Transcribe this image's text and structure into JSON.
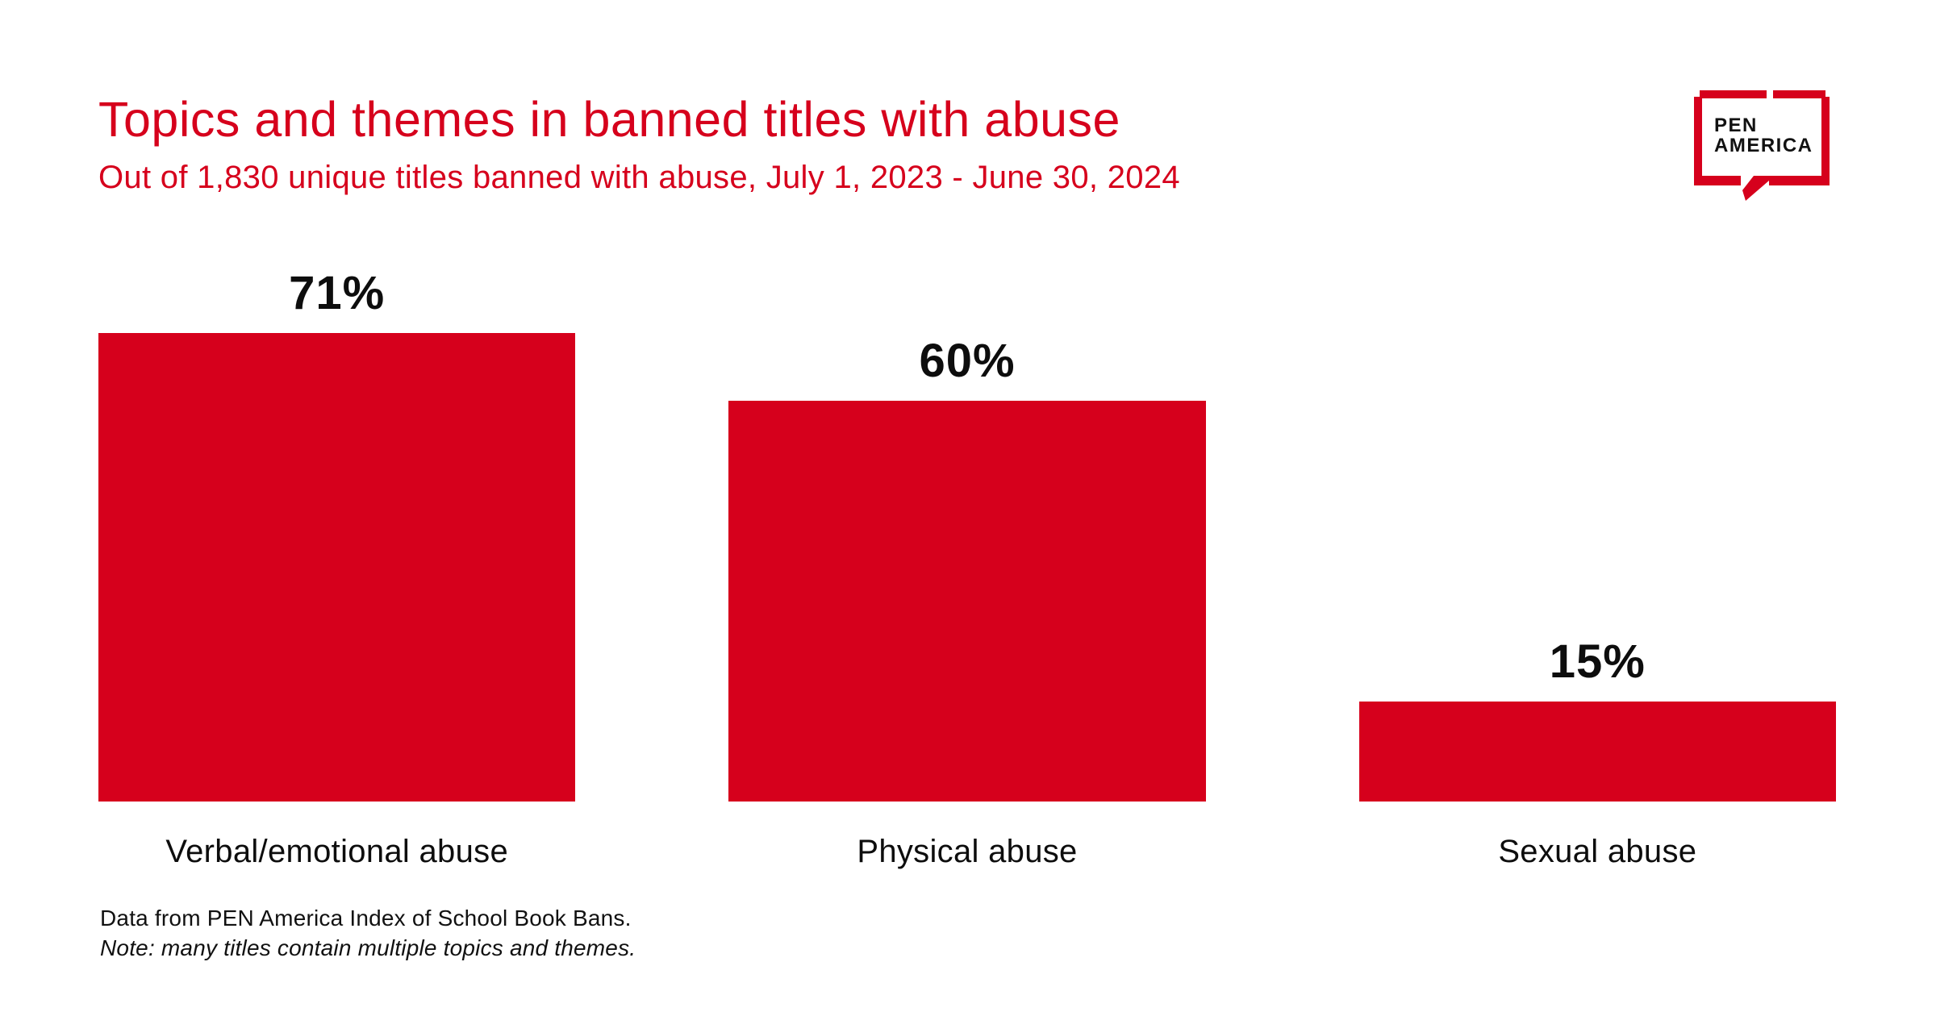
{
  "page": {
    "background": "#FFFFFF",
    "accent_red": "#D6001C",
    "text_black": "#0D0D0D"
  },
  "header": {
    "title": "Topics and themes in banned titles with abuse",
    "subtitle": "Out of 1,830 unique titles banned with abuse, July 1, 2023 - June 30, 2024"
  },
  "logo": {
    "line1": "PEN",
    "line2": "AMERICA"
  },
  "chart_data": {
    "type": "bar",
    "title": "Topics and themes in banned titles with abuse",
    "subtitle": "Out of 1,830 unique titles banned with abuse, July 1, 2023 - June 30, 2024",
    "categories": [
      "Verbal/emotional abuse",
      "Physical abuse",
      "Sexual abuse"
    ],
    "values": [
      71,
      60,
      15
    ],
    "value_labels": [
      "71%",
      "60%",
      "15%"
    ],
    "unit": "%",
    "ylim": [
      0,
      75
    ],
    "bar_color": "#D6001C",
    "grid": false,
    "legend": false,
    "orientation": "vertical"
  },
  "footer": {
    "source": "Data from PEN America Index of School Book Bans.",
    "note": "Note: many titles contain multiple topics and themes."
  }
}
